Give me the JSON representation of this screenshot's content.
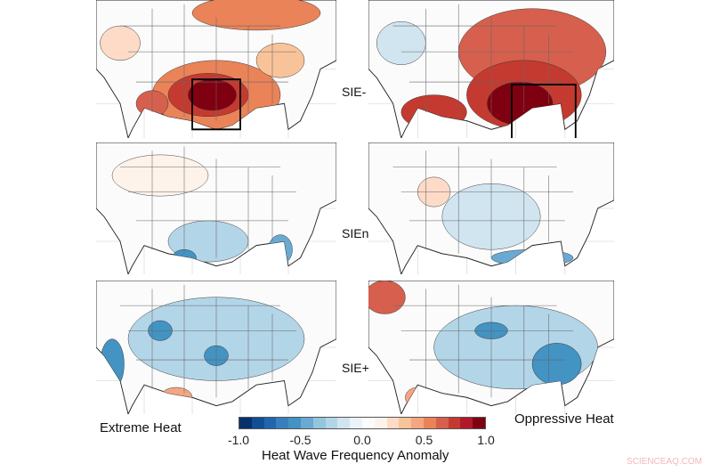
{
  "rows": [
    {
      "label": "SIE-",
      "left_tone": "strong positive (red) over south-central US",
      "right_tone": "strong positive (red) over eastern/southeastern US"
    },
    {
      "label": "SIEn",
      "left_tone": "weak",
      "right_tone": "weak"
    },
    {
      "label": "SIE+",
      "left_tone": "negative (blue)",
      "right_tone": "negative (blue), positive in northwest"
    }
  ],
  "columns": {
    "left": "Extreme Heat",
    "right": "Oppressive Heat"
  },
  "colorbar": {
    "title": "Heat Wave Frequency Anomaly",
    "ticks": [
      "-1.0",
      "-0.5",
      "0.0",
      "0.5",
      "1.0"
    ],
    "range": [
      -1.0,
      1.0
    ],
    "colors": [
      "#08306b",
      "#114f94",
      "#2166ac",
      "#3a7fbd",
      "#4393c3",
      "#6aa9d2",
      "#92c5de",
      "#b3d5e8",
      "#d1e5f0",
      "#ecf3f8",
      "#fbfbfb",
      "#fdf3ea",
      "#fddbc7",
      "#f9c39a",
      "#f4a582",
      "#ea8358",
      "#d6604d",
      "#c53a30",
      "#b2182b",
      "#7f0010"
    ]
  },
  "watermark": "SCIENCEAQ.COM"
}
